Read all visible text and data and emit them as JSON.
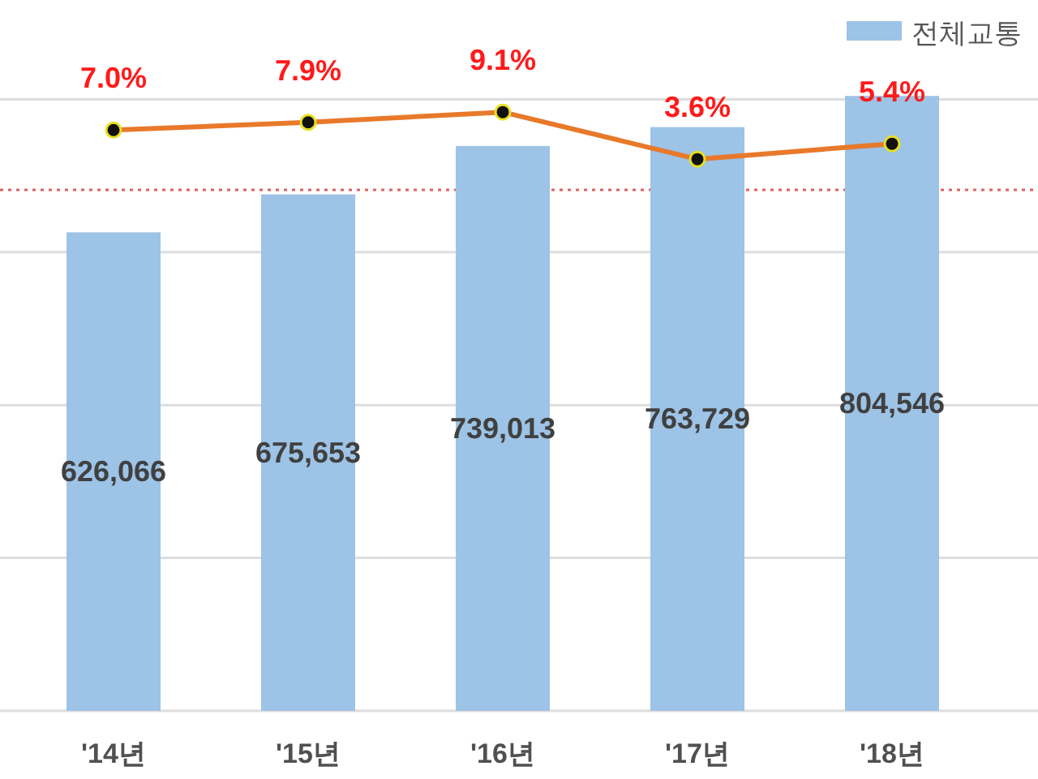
{
  "chart_data": {
    "type": "bar",
    "categories": [
      "'14년",
      "'15년",
      "'16년",
      "'17년",
      "'18년"
    ],
    "series": [
      {
        "name": "전체교통",
        "color": "#9dc3e6",
        "values": [
          626066,
          675653,
          739013,
          763729,
          804546
        ],
        "value_labels": [
          "626,066",
          "675,653",
          "739,013",
          "763,729",
          "804,546"
        ]
      },
      {
        "type": "line",
        "axis": "y2",
        "color": "#e8792b",
        "values": [
          7.0,
          7.9,
          9.1,
          3.6,
          5.4
        ],
        "value_labels": [
          "7.0%",
          "7.9%",
          "9.1%",
          "3.6%",
          "5.4%"
        ]
      }
    ],
    "yticks": [
      {
        "value": 0,
        "label": null
      },
      {
        "value": 200000,
        "label": null
      },
      {
        "value": 400000,
        "label": null
      },
      {
        "value": 600000,
        "label": null
      },
      {
        "value": 800000,
        "label": null
      }
    ],
    "ref_lines": [
      {
        "axis": "y2",
        "value": 0,
        "color": "#e06060",
        "line_style": "dotted"
      }
    ],
    "grid": "y",
    "legend": "top right",
    "tick_labels": "x",
    "marker": "circle"
  }
}
